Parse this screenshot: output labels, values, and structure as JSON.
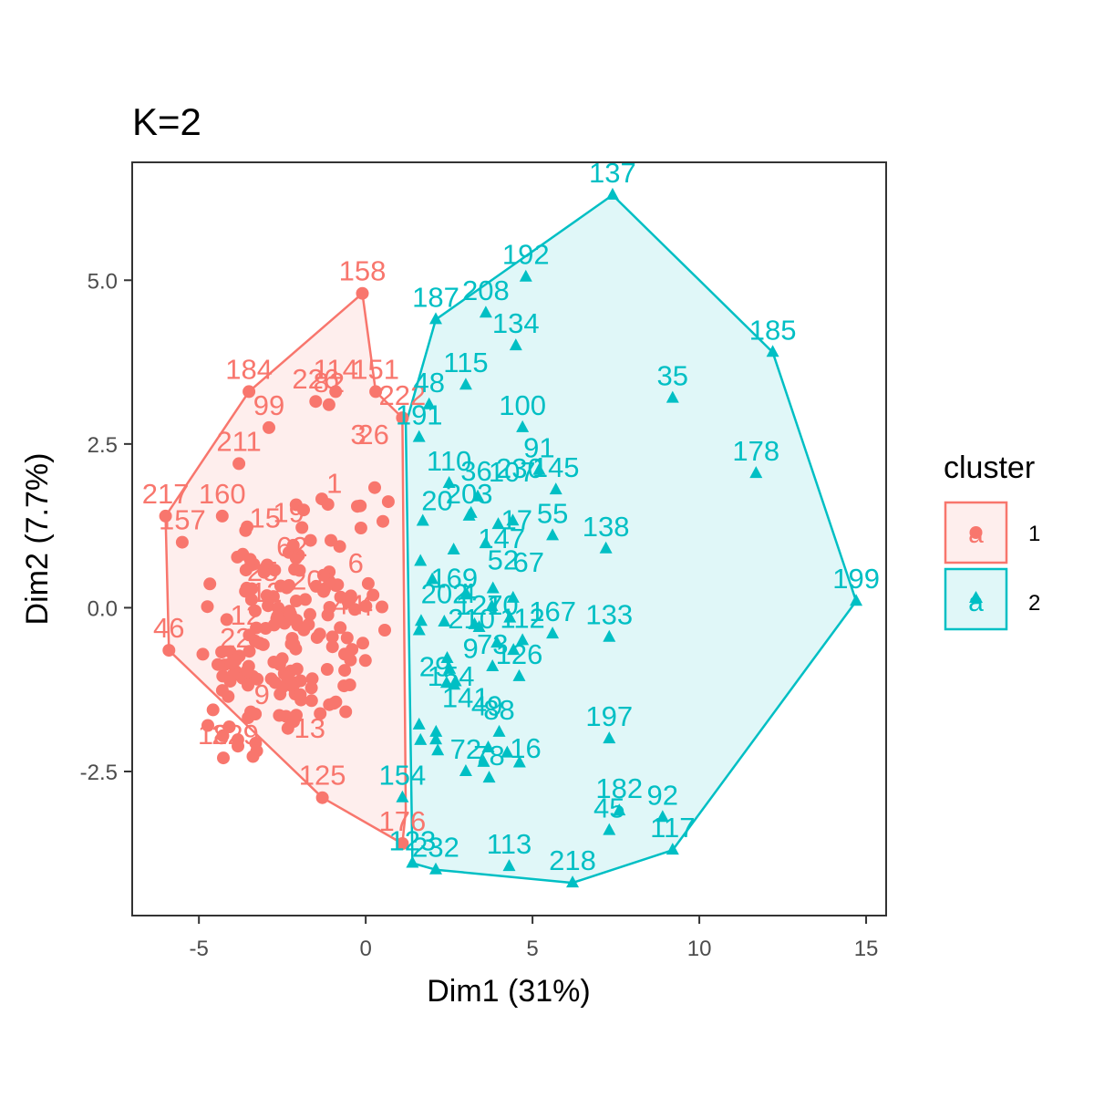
{
  "chart_data": {
    "type": "scatter",
    "title": "K=2",
    "xlabel": "Dim1 (31%)",
    "ylabel": "Dim2 (7.7%)",
    "xlim": [
      -7,
      15.6
    ],
    "ylim": [
      -4.7,
      6.8
    ],
    "xticks": [
      -5,
      0,
      5,
      10,
      15
    ],
    "yticks": [
      -2.5,
      0.0,
      2.5,
      5.0
    ],
    "ytick_labels": [
      "-2.5",
      "0.0",
      "2.5",
      "5.0"
    ],
    "grid": false,
    "legend": {
      "title": "cluster",
      "placement": "right",
      "entries": [
        {
          "label": "1",
          "glyph": "a",
          "color": "#F8766D"
        },
        {
          "label": "2",
          "glyph": "a",
          "color": "#00BFC4"
        }
      ]
    },
    "series": [
      {
        "name": "1",
        "color": "#F8766D",
        "shape": "circle",
        "hull": [
          [
            -0.1,
            4.8
          ],
          [
            0.3,
            3.3
          ],
          [
            1.1,
            2.9
          ],
          [
            1.2,
            -3.1
          ],
          [
            1.1,
            -3.6
          ],
          [
            -1.3,
            -2.9
          ],
          [
            -5.9,
            -0.65
          ],
          [
            -6.0,
            1.4
          ],
          [
            -3.5,
            3.3
          ]
        ],
        "points": [
          {
            "x": -0.1,
            "y": 4.8,
            "label": "158"
          },
          {
            "x": -3.5,
            "y": 3.3,
            "label": "184"
          },
          {
            "x": -2.9,
            "y": 2.75,
            "label": "99"
          },
          {
            "x": -1.5,
            "y": 3.15,
            "label": "226"
          },
          {
            "x": -0.9,
            "y": 3.3,
            "label": "114"
          },
          {
            "x": 0.3,
            "y": 3.3,
            "label": "151"
          },
          {
            "x": -1.1,
            "y": 3.1,
            "label": "82"
          },
          {
            "x": -3.8,
            "y": 2.2,
            "label": "211"
          },
          {
            "x": -4.3,
            "y": 1.4,
            "label": "160"
          },
          {
            "x": -6.0,
            "y": 1.4,
            "label": "217"
          },
          {
            "x": -5.5,
            "y": 1.0,
            "label": "157"
          },
          {
            "x": -5.9,
            "y": -0.65,
            "label": "46"
          },
          {
            "x": -1.3,
            "y": -2.9,
            "label": "125"
          },
          {
            "x": 1.1,
            "y": -3.6,
            "label": "176"
          },
          {
            "x": 1.1,
            "y": 2.9,
            "label": "222"
          },
          {
            "x": -3.9,
            "y": -0.8,
            "label": "22"
          }
        ],
        "label_fragments": [
          "62",
          "12",
          "229",
          "6",
          "26",
          "9",
          "19",
          "25",
          "15",
          "44",
          "4",
          "13",
          "18",
          "3",
          "12",
          "1",
          "20"
        ]
      },
      {
        "name": "2",
        "color": "#00BFC4",
        "shape": "triangle",
        "hull": [
          [
            2.1,
            4.4
          ],
          [
            7.4,
            6.3
          ],
          [
            12.2,
            3.9
          ],
          [
            14.7,
            0.1
          ],
          [
            9.2,
            -3.7
          ],
          [
            6.2,
            -4.2
          ],
          [
            2.1,
            -4.0
          ],
          [
            1.4,
            -3.9
          ],
          [
            1.2,
            2.8
          ]
        ],
        "points": [
          {
            "x": 7.4,
            "y": 6.3,
            "label": "137"
          },
          {
            "x": 4.8,
            "y": 5.05,
            "label": "192"
          },
          {
            "x": 2.1,
            "y": 4.4,
            "label": "187"
          },
          {
            "x": 3.6,
            "y": 4.5,
            "label": "208"
          },
          {
            "x": 4.5,
            "y": 4.0,
            "label": "134"
          },
          {
            "x": 12.2,
            "y": 3.9,
            "label": "185"
          },
          {
            "x": 3.0,
            "y": 3.4,
            "label": "115"
          },
          {
            "x": 1.9,
            "y": 3.1,
            "label": "48"
          },
          {
            "x": 9.2,
            "y": 3.2,
            "label": "35"
          },
          {
            "x": 4.7,
            "y": 2.75,
            "label": "100"
          },
          {
            "x": 1.6,
            "y": 2.6,
            "label": "191"
          },
          {
            "x": 5.2,
            "y": 2.1,
            "label": "91"
          },
          {
            "x": 11.7,
            "y": 2.05,
            "label": "178"
          },
          {
            "x": 2.5,
            "y": 1.9,
            "label": "110"
          },
          {
            "x": 3.1,
            "y": 1.4,
            "label": "203"
          },
          {
            "x": 5.7,
            "y": 1.8,
            "label": "145"
          },
          {
            "x": 5.6,
            "y": 1.1,
            "label": "55"
          },
          {
            "x": 7.2,
            "y": 0.9,
            "label": "138"
          },
          {
            "x": 14.7,
            "y": 0.1,
            "label": "199"
          },
          {
            "x": 5.6,
            "y": -0.4,
            "label": "167"
          },
          {
            "x": 7.3,
            "y": -0.45,
            "label": "133"
          },
          {
            "x": 3.4,
            "y": -0.3,
            "label": "127"
          },
          {
            "x": 4.7,
            "y": -0.5,
            "label": "112"
          },
          {
            "x": 3.8,
            "y": -0.9,
            "label": "73"
          },
          {
            "x": 7.3,
            "y": -2.0,
            "label": "197"
          },
          {
            "x": 4.0,
            "y": -1.9,
            "label": "88"
          },
          {
            "x": 3.0,
            "y": -2.5,
            "label": "72"
          },
          {
            "x": 3.7,
            "y": -2.6,
            "label": "78"
          },
          {
            "x": 1.1,
            "y": -2.9,
            "label": "154"
          },
          {
            "x": 7.6,
            "y": -3.1,
            "label": "182"
          },
          {
            "x": 8.9,
            "y": -3.2,
            "label": "92"
          },
          {
            "x": 7.3,
            "y": -3.4,
            "label": "45"
          },
          {
            "x": 9.2,
            "y": -3.7,
            "label": "117"
          },
          {
            "x": 1.4,
            "y": -3.9,
            "label": "123"
          },
          {
            "x": 2.1,
            "y": -4.0,
            "label": "232"
          },
          {
            "x": 4.3,
            "y": -3.95,
            "label": "113"
          },
          {
            "x": 6.2,
            "y": -4.2,
            "label": "218"
          },
          {
            "x": 4.6,
            "y": -1.05,
            "label": "126"
          }
        ],
        "label_fragments": [
          "9",
          "230",
          "52",
          "36",
          "10",
          "4",
          "169",
          "210",
          "107",
          "202",
          "141",
          "29",
          "49",
          "16",
          "17",
          "147",
          "154",
          "20",
          "67"
        ]
      }
    ]
  }
}
